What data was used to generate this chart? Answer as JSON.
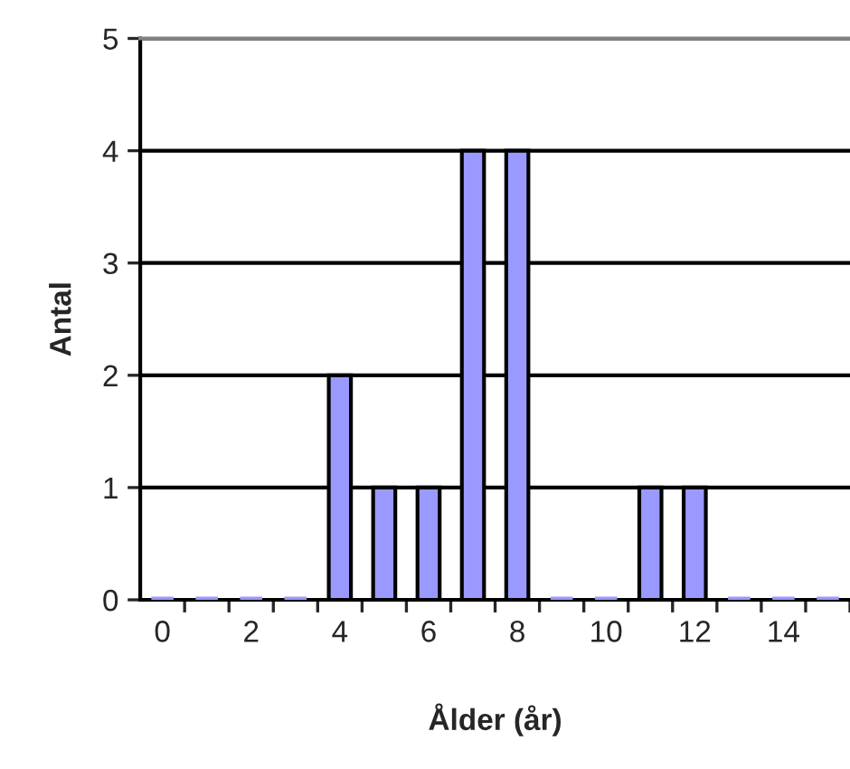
{
  "chart_data": {
    "type": "bar",
    "xlabel": "Ålder (år)",
    "ylabel": "Antal",
    "categories": [
      "0",
      null,
      "2",
      null,
      "4",
      null,
      "6",
      null,
      "8",
      null,
      "10",
      null,
      "12",
      null,
      "14",
      null
    ],
    "values": [
      0,
      0,
      0,
      0,
      2,
      1,
      1,
      4,
      4,
      0,
      0,
      1,
      1,
      0,
      0,
      0
    ],
    "color": "#9999ff",
    "ylim": [
      0,
      5
    ],
    "yticks": [
      0,
      1,
      2,
      3,
      4,
      5
    ],
    "grid": "y"
  }
}
